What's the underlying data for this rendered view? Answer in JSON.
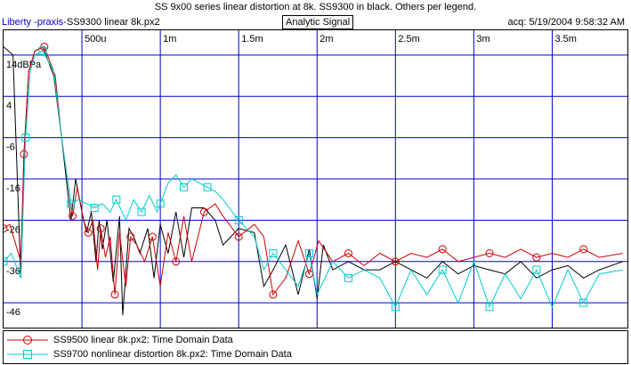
{
  "title": "SS 9x00 series linear distortion at 8k. SS9300 in black. Others per legend.",
  "header": {
    "app": "Liberty -praxis-",
    "file": "SS9300 linear 8k.px2",
    "mode": "Analytic Signal",
    "acq": "acq: 5/19/2004 9:58:32 AM"
  },
  "colors": {
    "grid": "#0000cc",
    "black_series": "#000000",
    "red_series": "#cc0000",
    "cyan_series": "#00cccc"
  },
  "chart_data": {
    "type": "line",
    "x_ticks": [
      "500u",
      "1m",
      "1.5m",
      "2m",
      "2.5m",
      "3m",
      "3.5m"
    ],
    "x_tick_values": [
      0.0005,
      0.001,
      0.0015,
      0.002,
      0.0025,
      0.003,
      0.0035
    ],
    "y_ticks": [
      "14dBPa",
      "4",
      "-6",
      "-16",
      "-26",
      "-36",
      "-46"
    ],
    "y_tick_values": [
      14,
      4,
      -6,
      -16,
      -26,
      -36,
      -46
    ],
    "xlim": [
      0,
      0.00398
    ],
    "ylim": [
      -52,
      20
    ],
    "grid": true,
    "series": [
      {
        "name": "SS9300 linear 8k.px2",
        "color": "#000000",
        "marker": "none",
        "x": [
          0.0,
          6e-05,
          0.00011,
          0.00013,
          0.00016,
          0.0002,
          0.00025,
          0.00032,
          0.00037,
          0.00043,
          0.00046,
          0.0005,
          0.00053,
          0.00056,
          0.00059,
          0.00061,
          0.00063,
          0.00066,
          0.0007,
          0.00074,
          0.00076,
          0.0008,
          0.00083,
          0.00087,
          0.00092,
          0.00096,
          0.001,
          0.00105,
          0.0011,
          0.00115,
          0.0012,
          0.00128,
          0.00135,
          0.0014,
          0.0015,
          0.0016,
          0.00166,
          0.00172,
          0.0018,
          0.00188,
          0.00195,
          0.002,
          0.00204,
          0.0021,
          0.0022,
          0.0023,
          0.0024,
          0.0025,
          0.0026,
          0.0027,
          0.0028,
          0.0029,
          0.003,
          0.0031,
          0.0032,
          0.0033,
          0.0034,
          0.0035,
          0.0036,
          0.0037,
          0.0038,
          0.00395
        ],
        "y": [
          16,
          14,
          -40,
          -10,
          10,
          15,
          16,
          9,
          -6,
          -26,
          -16,
          -24,
          -29,
          -24,
          -36,
          -26,
          -33,
          -26,
          -41,
          -25,
          -49,
          -28,
          -30,
          -34,
          -28,
          -40,
          -27,
          -34,
          -24,
          -35,
          -23,
          -23,
          -26,
          -32,
          -28,
          -29,
          -42,
          -38,
          -32,
          -44,
          -33,
          -45,
          -32,
          -38,
          -36,
          -38,
          -38,
          -36,
          -38,
          -40,
          -36,
          -39,
          -37,
          -38,
          -39,
          -36,
          -40,
          -38,
          -37,
          -40,
          -38,
          -36
        ]
      },
      {
        "name": "SS9500 linear 8k.px2:  Time Domain Data",
        "color": "#cc0000",
        "marker": "circle",
        "x": [
          0.0,
          4e-05,
          0.00011,
          0.00013,
          0.00016,
          0.0002,
          0.00026,
          0.00033,
          0.00037,
          0.00044,
          0.00047,
          0.00051,
          0.00054,
          0.00057,
          0.0006,
          0.00062,
          0.00065,
          0.00068,
          0.00071,
          0.00074,
          0.00078,
          0.00081,
          0.00085,
          0.0009,
          0.00095,
          0.001,
          0.00105,
          0.0011,
          0.00115,
          0.0012,
          0.00128,
          0.00135,
          0.0014,
          0.0015,
          0.0016,
          0.00166,
          0.00172,
          0.0018,
          0.00188,
          0.00195,
          0.00201,
          0.0021,
          0.0022,
          0.0023,
          0.0024,
          0.0025,
          0.0026,
          0.0027,
          0.0028,
          0.0029,
          0.003,
          0.0031,
          0.0032,
          0.0033,
          0.0034,
          0.0035,
          0.0036,
          0.0037,
          0.0038,
          0.00395
        ],
        "y": [
          -28,
          -27,
          -36,
          -10,
          10,
          15,
          16,
          9,
          -6,
          -25,
          -18,
          -26,
          -29,
          -26,
          -38,
          -28,
          -35,
          -30,
          -44,
          -29,
          -42,
          -30,
          -32,
          -36,
          -30,
          -42,
          -29,
          -36,
          -25,
          -36,
          -24,
          -22,
          -25,
          -30,
          -27,
          -30,
          -44,
          -40,
          -31,
          -39,
          -31,
          -36,
          -34,
          -37,
          -34,
          -36,
          -34,
          -35,
          -33,
          -36,
          -35,
          -34,
          -35,
          -33,
          -35,
          -34,
          -35,
          -33,
          -35,
          -34
        ]
      },
      {
        "name": "SS9700 nonlinear distortion 8k.px2:  Time Domain Data",
        "color": "#00cccc",
        "marker": "square",
        "x": [
          0.0,
          5e-05,
          0.00011,
          0.00014,
          0.00017,
          0.0002,
          0.00025,
          0.00032,
          0.00037,
          0.00043,
          0.00048,
          0.00053,
          0.00058,
          0.00063,
          0.00068,
          0.00072,
          0.00078,
          0.00083,
          0.00088,
          0.00093,
          0.00098,
          0.001,
          0.00105,
          0.0011,
          0.00115,
          0.0012,
          0.00125,
          0.0013,
          0.00135,
          0.0014,
          0.0015,
          0.0016,
          0.00166,
          0.00172,
          0.0018,
          0.00188,
          0.00195,
          0.002,
          0.0021,
          0.0022,
          0.0023,
          0.0024,
          0.0025,
          0.0026,
          0.0027,
          0.0028,
          0.0029,
          0.003,
          0.0031,
          0.0032,
          0.0033,
          0.0034,
          0.0035,
          0.0036,
          0.0037,
          0.0038,
          0.00395
        ],
        "y": [
          -36,
          -34,
          -40,
          -6,
          10,
          14,
          15,
          10,
          -6,
          -22,
          -21,
          -22,
          -23,
          -22,
          -24,
          -21,
          -26,
          -21,
          -24,
          -20,
          -24,
          -22,
          -17,
          -15,
          -18,
          -16,
          -17,
          -18,
          -19,
          -21,
          -26,
          -30,
          -38,
          -34,
          -38,
          -42,
          -34,
          -44,
          -36,
          -40,
          -38,
          -40,
          -47,
          -38,
          -44,
          -38,
          -46,
          -36,
          -47,
          -39,
          -45,
          -38,
          -47,
          -38,
          -46,
          -39,
          -38
        ]
      }
    ]
  },
  "legend": {
    "items": [
      {
        "label": "SS9500 linear 8k.px2:  Time Domain Data",
        "color": "#cc0000",
        "marker": "circle"
      },
      {
        "label": "SS9700 nonlinear distortion 8k.px2:  Time Domain Data",
        "color": "#00cccc",
        "marker": "square"
      }
    ]
  }
}
